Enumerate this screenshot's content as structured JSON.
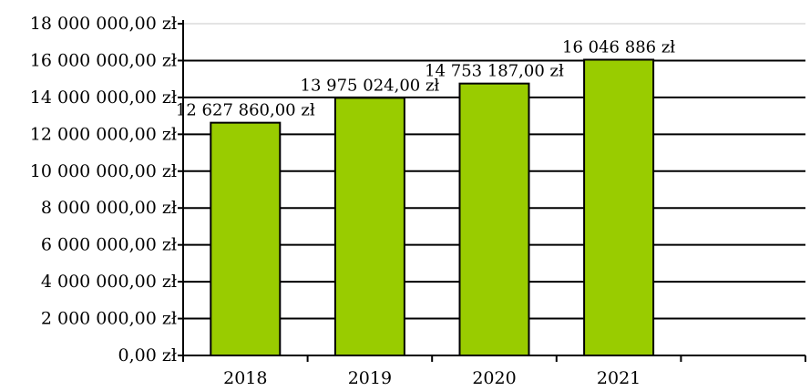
{
  "chart_data": {
    "type": "bar",
    "categories": [
      "2018",
      "2019",
      "2020",
      "2021"
    ],
    "values": [
      12627860,
      13975024,
      14753187,
      16046886
    ],
    "data_labels": [
      "12 627 860,00 zł",
      "13 975 024,00 zł",
      "14 753 187,00 zł",
      "16 046 886 zł"
    ],
    "y_ticks": [
      {
        "value": 0,
        "label": "0,00 zł"
      },
      {
        "value": 2000000,
        "label": "2 000 000,00 zł"
      },
      {
        "value": 4000000,
        "label": "4 000 000,00 zł"
      },
      {
        "value": 6000000,
        "label": "6 000 000,00 zł"
      },
      {
        "value": 8000000,
        "label": "8 000 000,00 zł"
      },
      {
        "value": 10000000,
        "label": "10 000 000,00 zł"
      },
      {
        "value": 12000000,
        "label": "12 000 000,00 zł"
      },
      {
        "value": 14000000,
        "label": "14 000 000,00 zł"
      },
      {
        "value": 16000000,
        "label": "16 000 000,00 zł"
      },
      {
        "value": 18000000,
        "label": "18 000 000,00 zł"
      }
    ],
    "ylim": [
      0,
      18000000
    ],
    "category_slots": 5,
    "grid": true,
    "legend": "none",
    "title": "",
    "xlabel": "",
    "ylabel": "",
    "colors": {
      "bar": "#99cc00",
      "bar_stroke": "#000000",
      "grid": "#000000"
    }
  }
}
